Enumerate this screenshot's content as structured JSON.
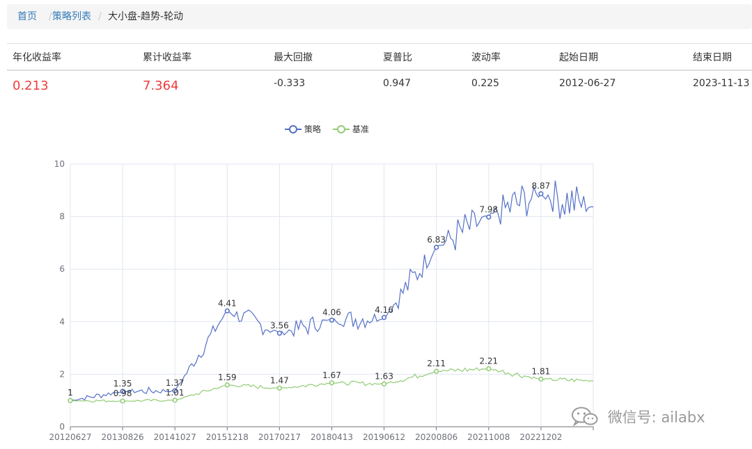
{
  "breadcrumb": {
    "home": "首页",
    "list": "策略列表",
    "current": "大小盘-趋势-轮动",
    "sep": "/"
  },
  "stats": {
    "headers": [
      "年化收益率",
      "累计收益率",
      "最大回撤",
      "夏普比",
      "波动率",
      "起始日期",
      "结束日期"
    ],
    "values": [
      "0.213",
      "7.364",
      "-0.333",
      "0.947",
      "0.225",
      "2012-06-27",
      "2023-11-13"
    ],
    "highlight_color": "#ee3b3b"
  },
  "watermark": {
    "text": "微信号: ailabx",
    "icon": "wechat-icon"
  },
  "chart_data": {
    "type": "line",
    "x": [
      "20120627",
      "20130826",
      "20141027",
      "20151218",
      "20170217",
      "20180413",
      "20190612",
      "20200806",
      "20211008",
      "20221202",
      "20231113"
    ],
    "xticks": [
      "20120627",
      "20130826",
      "20141027",
      "20151218",
      "20170217",
      "20180413",
      "20190612",
      "20200806",
      "20211008",
      "20221202"
    ],
    "ylim": [
      0,
      10
    ],
    "yticks": [
      0,
      2,
      4,
      6,
      8,
      10
    ],
    "grid": true,
    "legend_position": "top-center",
    "series": [
      {
        "name": "策略",
        "color": "#5470c6",
        "marked_values": [
          1,
          1.35,
          1.37,
          4.41,
          3.56,
          4.06,
          4.16,
          6.83,
          7.98,
          8.87
        ],
        "values": [
          1,
          1.35,
          1.37,
          4.41,
          3.56,
          4.06,
          4.16,
          6.83,
          7.98,
          8.87,
          8.37
        ]
      },
      {
        "name": "基准",
        "color": "#91cc75",
        "marked_values": [
          1,
          0.98,
          1.01,
          1.59,
          1.47,
          1.67,
          1.63,
          2.11,
          2.21,
          1.81
        ],
        "values": [
          1,
          0.98,
          1.01,
          1.59,
          1.47,
          1.67,
          1.63,
          2.11,
          2.21,
          1.81,
          1.75
        ]
      }
    ]
  }
}
